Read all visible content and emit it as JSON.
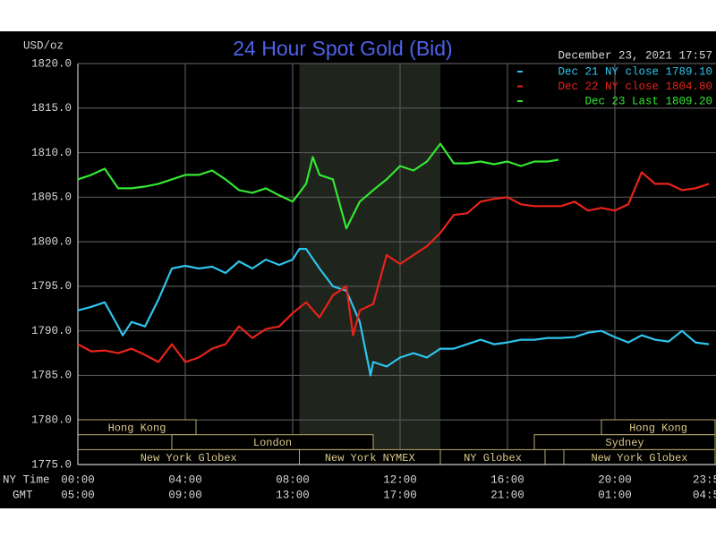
{
  "chart_data": {
    "type": "line",
    "title": "24 Hour Spot Gold (Bid)",
    "y_label": "USD/oz",
    "timestamp": "December 23, 2021 17:57",
    "x_row_labels": [
      "NY Time",
      "GMT"
    ],
    "ylim": [
      1775,
      1820
    ],
    "yticks": [
      {
        "value": 1775,
        "label": "1775.0"
      },
      {
        "value": 1780,
        "label": "1780.0"
      },
      {
        "value": 1785,
        "label": "1785.0"
      },
      {
        "value": 1790,
        "label": "1790.0"
      },
      {
        "value": 1795,
        "label": "1795.0"
      },
      {
        "value": 1800,
        "label": "1800.0"
      },
      {
        "value": 1805,
        "label": "1805.0"
      },
      {
        "value": 1810,
        "label": "1810.0"
      },
      {
        "value": 1815,
        "label": "1815.0"
      },
      {
        "value": 1820,
        "label": "1820.0"
      }
    ],
    "xlim": [
      0,
      24
    ],
    "xticks": [
      {
        "value": 0,
        "label": "00:00"
      },
      {
        "value": 4,
        "label": "04:00"
      },
      {
        "value": 8,
        "label": "08:00"
      },
      {
        "value": 12,
        "label": "12:00"
      },
      {
        "value": 16,
        "label": "16:00"
      },
      {
        "value": 20,
        "label": "20:00"
      },
      {
        "value": 23.4,
        "label": "23:5"
      }
    ],
    "gmt_labels": [
      "05:00",
      "09:00",
      "13:00",
      "17:00",
      "21:00",
      "01:00",
      "04:5"
    ],
    "grid": true,
    "shaded_region": [
      8.25,
      13.5
    ],
    "session_rows": [
      [
        {
          "label": "Hong Kong",
          "start": 0,
          "end": 4.4
        },
        {
          "label": "Hong Kong",
          "start": 19.5,
          "end": 24
        }
      ],
      [
        {
          "label": "London",
          "start": 3.5,
          "end": 11
        },
        {
          "label": "Sydney",
          "start": 17,
          "end": 24
        }
      ],
      [
        {
          "label": "New York Globex",
          "start": 0,
          "end": 8.25
        },
        {
          "label": "New York NYMEX",
          "start": 8.25,
          "end": 13.5
        },
        {
          "label": "NY Globex",
          "start": 13.5,
          "end": 17.4
        },
        {
          "label": "New York Globex",
          "start": 18.1,
          "end": 24
        }
      ]
    ],
    "series": [
      {
        "name": "Dec 21 NY close 1789.10",
        "color": "#2ec4ec",
        "x": [
          0,
          0.5,
          1,
          1.5,
          1.67,
          2,
          2.5,
          3,
          3.5,
          4,
          4.5,
          5,
          5.5,
          6,
          6.5,
          7,
          7.5,
          8,
          8.25,
          8.5,
          9,
          9.5,
          10,
          10.5,
          10.9,
          11,
          11.5,
          12,
          12.5,
          13,
          13.5,
          14,
          14.5,
          15,
          15.5,
          16,
          16.5,
          17,
          17.5,
          18,
          18.5,
          19,
          19.5,
          20,
          20.5,
          21,
          21.5,
          22,
          22.5,
          23,
          23.5
        ],
        "values": [
          1792.3,
          1792.7,
          1793.2,
          1790.5,
          1789.5,
          1791,
          1790.5,
          1793.5,
          1797,
          1797.3,
          1797,
          1797.2,
          1796.5,
          1797.8,
          1797,
          1798,
          1797.4,
          1798,
          1799.2,
          1799.2,
          1797,
          1795,
          1794.5,
          1791,
          1785,
          1786.5,
          1786,
          1787,
          1787.5,
          1787,
          1788,
          1788,
          1788.5,
          1789,
          1788.5,
          1788.7,
          1789,
          1789,
          1789.2,
          1789.2,
          1789.3,
          1789.8,
          1790,
          1789.3,
          1788.7,
          1789.5,
          1789,
          1788.8,
          1790,
          1788.7,
          1788.5
        ]
      },
      {
        "name": "Dec 22 NY close 1804.80",
        "color": "#e8231a",
        "x": [
          0,
          0.5,
          1,
          1.5,
          2,
          2.5,
          3,
          3.5,
          4,
          4.5,
          5,
          5.5,
          6,
          6.5,
          7,
          7.5,
          8,
          8.5,
          9,
          9.5,
          10,
          10.25,
          10.5,
          11,
          11.5,
          12,
          12.5,
          13,
          13.5,
          14,
          14.5,
          15,
          15.5,
          16,
          16.5,
          17,
          17.5,
          18,
          18.5,
          19,
          19.5,
          20,
          20.5,
          21,
          21.5,
          22,
          22.5,
          23,
          23.5
        ],
        "values": [
          1788.5,
          1787.7,
          1787.8,
          1787.5,
          1788,
          1787.3,
          1786.5,
          1788.5,
          1786.5,
          1787,
          1788,
          1788.5,
          1790.5,
          1789.2,
          1790.2,
          1790.5,
          1792,
          1793.2,
          1791.5,
          1794,
          1795,
          1789.5,
          1792.3,
          1793,
          1798.5,
          1797.5,
          1798.5,
          1799.5,
          1801,
          1803,
          1803.2,
          1804.5,
          1804.8,
          1805,
          1804.2,
          1804,
          1804,
          1804,
          1804.5,
          1803.5,
          1803.8,
          1803.5,
          1804.2,
          1807.8,
          1806.5,
          1806.5,
          1805.8,
          1806,
          1806.5
        ]
      },
      {
        "name": "Dec 23 Last 1809.20",
        "color": "#35e632",
        "x": [
          0,
          0.5,
          1,
          1.5,
          2,
          2.5,
          3,
          3.5,
          4,
          4.5,
          5,
          5.5,
          6,
          6.5,
          7,
          7.5,
          8,
          8.5,
          8.75,
          9,
          9.5,
          10,
          10.5,
          11,
          11.5,
          12,
          12.5,
          13,
          13.5,
          14,
          14.5,
          15,
          15.5,
          16,
          16.5,
          17,
          17.5,
          17.9
        ],
        "values": [
          1807,
          1807.5,
          1808.2,
          1806,
          1806,
          1806.2,
          1806.5,
          1807,
          1807.5,
          1807.5,
          1808,
          1807,
          1805.8,
          1805.5,
          1806,
          1805.2,
          1804.5,
          1806.5,
          1809.5,
          1807.5,
          1807,
          1801.5,
          1804.5,
          1805.8,
          1807,
          1808.5,
          1808,
          1809,
          1811,
          1808.8,
          1808.8,
          1809,
          1808.7,
          1809,
          1808.5,
          1809,
          1809,
          1809.2
        ]
      }
    ]
  }
}
